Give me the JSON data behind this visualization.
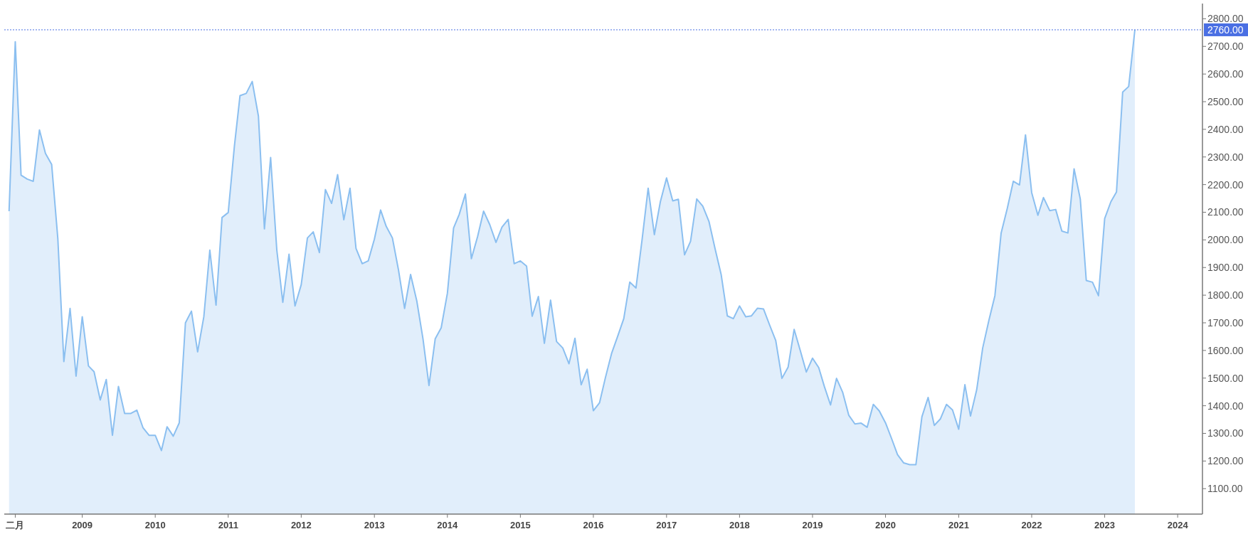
{
  "chart_data": {
    "type": "area",
    "x": [
      "2008-01",
      "2008-02",
      "2008-03",
      "2008-04",
      "2008-05",
      "2008-06",
      "2008-07",
      "2008-08",
      "2008-09",
      "2008-10",
      "2008-11",
      "2008-12",
      "2009-01",
      "2009-02",
      "2009-03",
      "2009-04",
      "2009-05",
      "2009-06",
      "2009-07",
      "2009-08",
      "2009-09",
      "2009-10",
      "2009-11",
      "2009-12",
      "2010-01",
      "2010-02",
      "2010-03",
      "2010-04",
      "2010-05",
      "2010-06",
      "2010-07",
      "2010-08",
      "2010-09",
      "2010-10",
      "2010-11",
      "2010-12",
      "2011-01",
      "2011-02",
      "2011-03",
      "2011-04",
      "2011-05",
      "2011-06",
      "2011-07",
      "2011-08",
      "2011-09",
      "2011-10",
      "2011-11",
      "2011-12",
      "2012-01",
      "2012-02",
      "2012-03",
      "2012-04",
      "2012-05",
      "2012-06",
      "2012-07",
      "2012-08",
      "2012-09",
      "2012-10",
      "2012-11",
      "2012-12",
      "2013-01",
      "2013-02",
      "2013-03",
      "2013-04",
      "2013-05",
      "2013-06",
      "2013-07",
      "2013-08",
      "2013-09",
      "2013-10",
      "2013-11",
      "2013-12",
      "2014-01",
      "2014-02",
      "2014-03",
      "2014-04",
      "2014-05",
      "2014-06",
      "2014-07",
      "2014-08",
      "2014-09",
      "2014-10",
      "2014-11",
      "2014-12",
      "2015-01",
      "2015-02",
      "2015-03",
      "2015-04",
      "2015-05",
      "2015-06",
      "2015-07",
      "2015-08",
      "2015-09",
      "2015-10",
      "2015-11",
      "2015-12",
      "2016-01",
      "2016-02",
      "2016-03",
      "2016-04",
      "2016-05",
      "2016-06",
      "2016-07",
      "2016-08",
      "2016-09",
      "2016-10",
      "2016-11",
      "2016-12",
      "2017-01",
      "2017-02",
      "2017-03",
      "2017-04",
      "2017-05",
      "2017-06",
      "2017-07",
      "2017-08",
      "2017-09",
      "2017-10",
      "2017-11",
      "2017-12",
      "2018-01",
      "2018-02",
      "2018-03",
      "2018-04",
      "2018-05",
      "2018-06",
      "2018-07",
      "2018-08",
      "2018-09",
      "2018-10",
      "2018-11",
      "2018-12",
      "2019-01",
      "2019-02",
      "2019-03",
      "2019-04",
      "2019-05",
      "2019-06",
      "2019-07",
      "2019-08",
      "2019-09",
      "2019-10",
      "2019-11",
      "2019-12",
      "2020-01",
      "2020-02",
      "2020-03",
      "2020-04",
      "2020-05",
      "2020-06",
      "2020-07",
      "2020-08",
      "2020-09",
      "2020-10",
      "2020-11",
      "2020-12",
      "2021-01",
      "2021-02",
      "2021-03",
      "2021-04",
      "2021-05",
      "2021-06",
      "2021-07",
      "2021-08",
      "2021-09",
      "2021-10",
      "2021-11",
      "2021-12",
      "2022-01",
      "2022-02",
      "2022-03",
      "2022-04",
      "2022-05",
      "2022-06",
      "2022-07",
      "2022-08",
      "2022-09",
      "2022-10",
      "2022-11",
      "2022-12",
      "2023-01",
      "2023-02",
      "2023-03",
      "2023-04",
      "2023-05",
      "2023-06"
    ],
    "series": [
      {
        "color": "#8bbff0",
        "values": [
          2104,
          2717,
          2234,
          2220,
          2212,
          2398,
          2313,
          2273,
          2003,
          1560,
          1752,
          1507,
          1722,
          1544,
          1523,
          1421,
          1495,
          1293,
          1470,
          1372,
          1372,
          1384,
          1320,
          1293,
          1293,
          1238,
          1324,
          1290,
          1338,
          1700,
          1742,
          1595,
          1722,
          1963,
          1764,
          2081,
          2099,
          2340,
          2522,
          2530,
          2573,
          2448,
          2040,
          2298,
          1963,
          1774,
          1948,
          1761,
          1838,
          2007,
          2029,
          1954,
          2182,
          2132,
          2236,
          2073,
          2187,
          1969,
          1914,
          1924,
          2003,
          2108,
          2049,
          2007,
          1893,
          1752,
          1875,
          1779,
          1642,
          1473,
          1642,
          1682,
          1807,
          2043,
          2092,
          2166,
          1932,
          2012,
          2104,
          2055,
          1991,
          2046,
          2074,
          1914,
          1924,
          1905,
          1724,
          1795,
          1626,
          1782,
          1632,
          1609,
          1552,
          1644,
          1476,
          1532,
          1382,
          1411,
          1501,
          1589,
          1650,
          1715,
          1847,
          1826,
          2003,
          2187,
          2019,
          2138,
          2224,
          2141,
          2147,
          1946,
          1995,
          2148,
          2122,
          2067,
          1967,
          1875,
          1725,
          1715,
          1761,
          1722,
          1725,
          1753,
          1750,
          1691,
          1636,
          1499,
          1540,
          1676,
          1599,
          1522,
          1572,
          1538,
          1470,
          1403,
          1499,
          1448,
          1366,
          1334,
          1337,
          1322,
          1405,
          1381,
          1338,
          1280,
          1223,
          1193,
          1187,
          1187,
          1360,
          1430,
          1329,
          1352,
          1405,
          1385,
          1315,
          1476,
          1363,
          1458,
          1609,
          1709,
          1798,
          2024,
          2114,
          2212,
          2199,
          2380,
          2171,
          2089,
          2153,
          2106,
          2110,
          2032,
          2025,
          2257,
          2148,
          1853,
          1847,
          1798,
          2077,
          2138,
          2173,
          2535,
          2555,
          2760
        ]
      }
    ],
    "xlim": [
      "2007-12-08",
      "2024-05-04"
    ],
    "xticks": [
      {
        "value": "2008-02-01",
        "label": "二月"
      },
      {
        "value": "2009-01-01",
        "label": "2009"
      },
      {
        "value": "2010-01-01",
        "label": "2010"
      },
      {
        "value": "2011-01-01",
        "label": "2011"
      },
      {
        "value": "2012-01-01",
        "label": "2012"
      },
      {
        "value": "2013-01-01",
        "label": "2013"
      },
      {
        "value": "2014-01-01",
        "label": "2014"
      },
      {
        "value": "2015-01-01",
        "label": "2015"
      },
      {
        "value": "2016-01-01",
        "label": "2016"
      },
      {
        "value": "2017-01-01",
        "label": "2017"
      },
      {
        "value": "2018-01-01",
        "label": "2018"
      },
      {
        "value": "2019-01-01",
        "label": "2019"
      },
      {
        "value": "2020-01-01",
        "label": "2020"
      },
      {
        "value": "2021-01-01",
        "label": "2021"
      },
      {
        "value": "2022-01-01",
        "label": "2022"
      },
      {
        "value": "2023-01-01",
        "label": "2023"
      },
      {
        "value": "2024-01-01",
        "label": "2024"
      }
    ],
    "ylim": [
      1008,
      2855
    ],
    "yticks": [
      {
        "value": 1100,
        "label": "1100.00"
      },
      {
        "value": 1200,
        "label": "1200.00"
      },
      {
        "value": 1300,
        "label": "1300.00"
      },
      {
        "value": 1400,
        "label": "1400.00"
      },
      {
        "value": 1500,
        "label": "1500.00"
      },
      {
        "value": 1600,
        "label": "1600.00"
      },
      {
        "value": 1700,
        "label": "1700.00"
      },
      {
        "value": 1800,
        "label": "1800.00"
      },
      {
        "value": 1900,
        "label": "1900.00"
      },
      {
        "value": 2000,
        "label": "2000.00"
      },
      {
        "value": 2100,
        "label": "2100.00"
      },
      {
        "value": 2200,
        "label": "2200.00"
      },
      {
        "value": 2300,
        "label": "2300.00"
      },
      {
        "value": 2400,
        "label": "2400.00"
      },
      {
        "value": 2500,
        "label": "2500.00"
      },
      {
        "value": 2600,
        "label": "2600.00"
      },
      {
        "value": 2700,
        "label": "2700.00"
      },
      {
        "value": 2800,
        "label": "2800.00"
      }
    ],
    "ref_lines": [
      {
        "axis": "y",
        "value": 2760,
        "label": "2760.00",
        "color": "#4a6fe3",
        "line_style": "dotted"
      }
    ],
    "grid": false,
    "marker": "none",
    "line_style": "solid"
  }
}
